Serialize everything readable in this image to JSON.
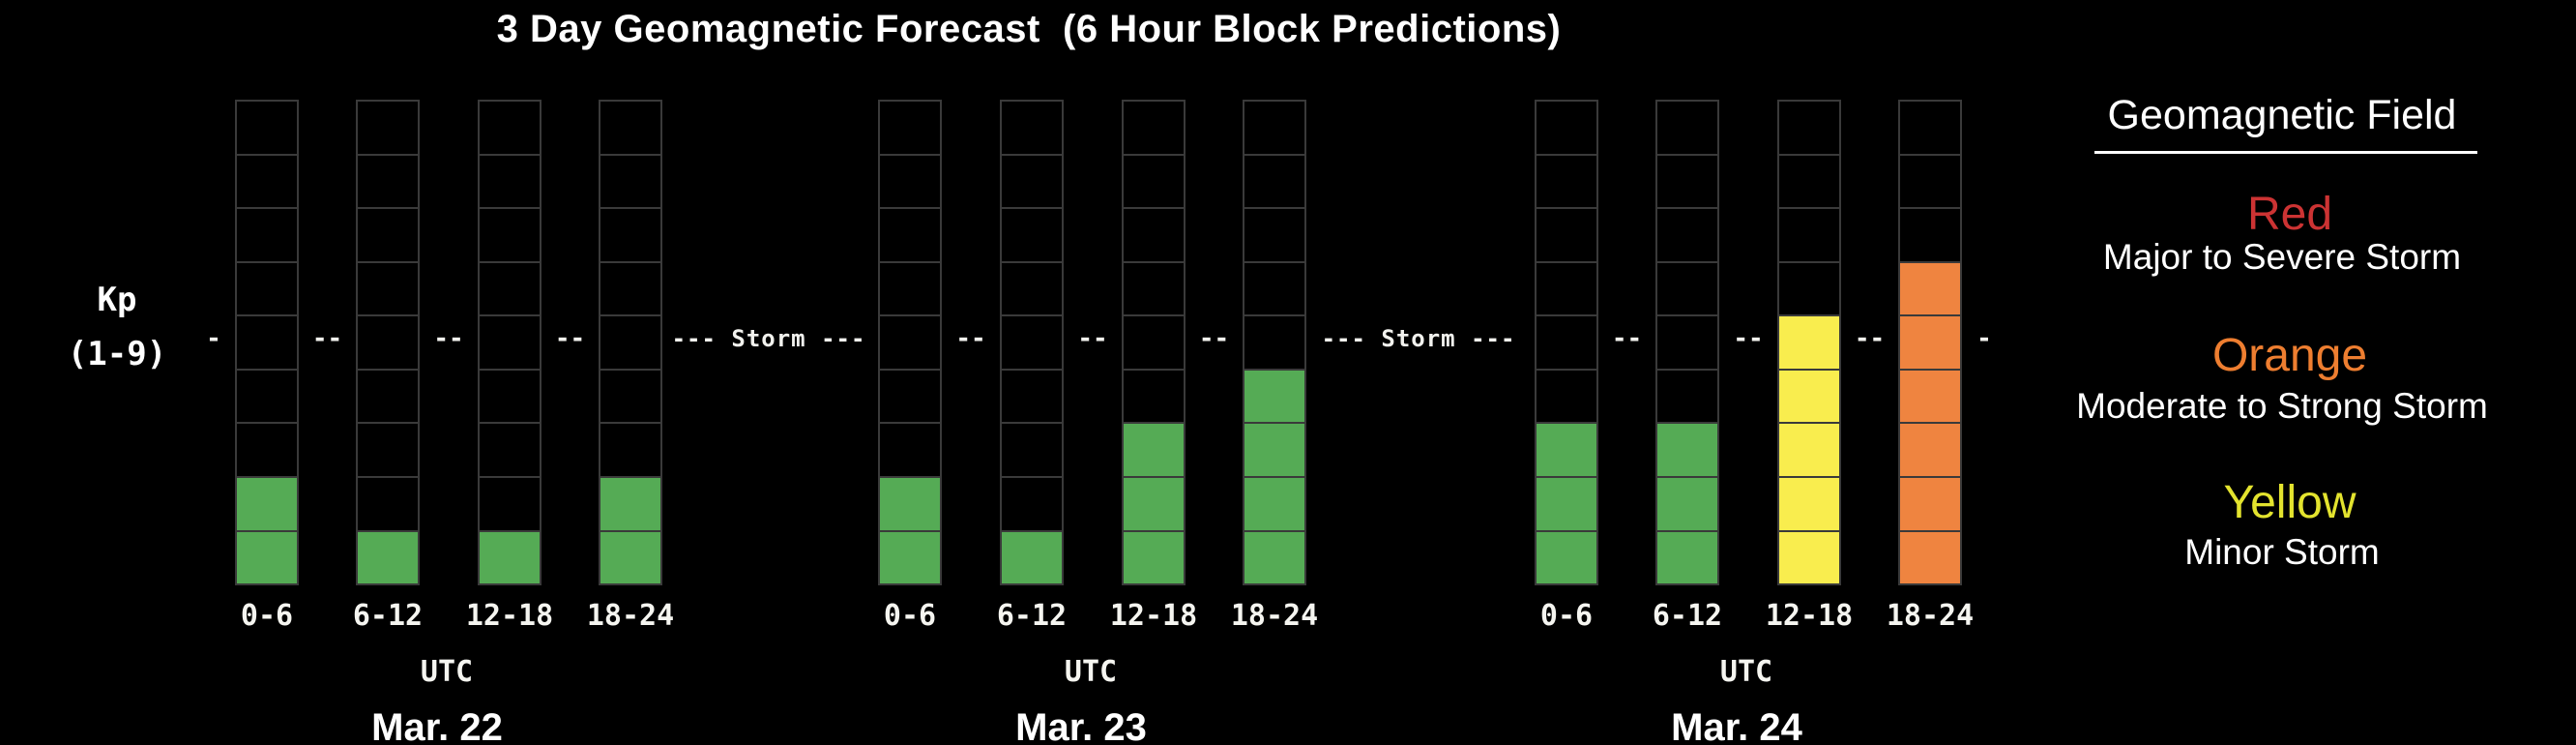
{
  "title": "3 Day Geomagnetic Forecast  (6 Hour Block Predictions)",
  "y_axis": {
    "line1": "Kp",
    "line2": "(1-9)"
  },
  "storm_row": {
    "leading_dash": "-",
    "between_dash": "--",
    "storm_label": "--- Storm ---",
    "trailing_dash": "-"
  },
  "x_axis": {
    "unit_label": "UTC"
  },
  "chart_data": {
    "type": "bar",
    "title": "3 Day Geomagnetic Forecast (6 Hour Block Predictions)",
    "ylabel": "Kp (1-9)",
    "ylim": [
      0,
      9
    ],
    "num_segments_per_bar": 9,
    "storm_threshold_kp": 5,
    "block_labels": [
      "0-6",
      "6-12",
      "12-18",
      "18-24"
    ],
    "time_unit": "UTC",
    "days": [
      {
        "date": "Mar. 22",
        "kp": [
          2,
          1,
          1,
          2
        ],
        "severity": [
          "green",
          "green",
          "green",
          "green"
        ]
      },
      {
        "date": "Mar. 23",
        "kp": [
          2,
          1,
          3,
          4
        ],
        "severity": [
          "green",
          "green",
          "green",
          "green"
        ]
      },
      {
        "date": "Mar. 24",
        "kp": [
          3,
          3,
          5,
          6
        ],
        "severity": [
          "green",
          "green",
          "yellow",
          "orange"
        ]
      }
    ]
  },
  "colors": {
    "background": "#000000",
    "cell_border": "#3a3a3a",
    "green": "#55ab55",
    "yellow": "#f9ed4e",
    "orange": "#ef8440",
    "text": "#ffffff"
  },
  "legend": {
    "heading": "Geomagnetic Field",
    "entries": [
      {
        "label": "Red",
        "color": "#cc3333",
        "description": "Major to Severe Storm"
      },
      {
        "label": "Orange",
        "color": "#ee7e30",
        "description": "Moderate to Strong Storm"
      },
      {
        "label": "Yellow",
        "color": "#e3e32e",
        "description": "Minor Storm"
      }
    ]
  }
}
